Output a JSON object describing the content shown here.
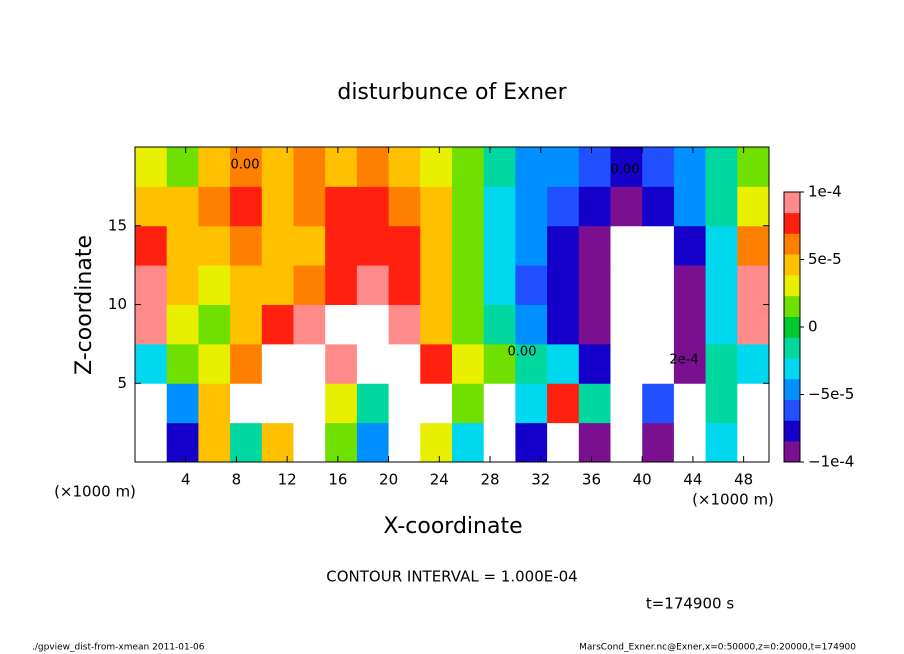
{
  "chart_data": {
    "type": "heatmap",
    "title": "disturbunce of Exner",
    "x_label": "X-coordinate",
    "y_label": "Z-coordinate",
    "x_unit": "(×1000 m)",
    "y_unit": "(×1000 m)",
    "xlim": [
      0,
      50
    ],
    "ylim": [
      0,
      20
    ],
    "xticks": [
      4,
      8,
      12,
      16,
      20,
      24,
      28,
      32,
      36,
      40,
      44,
      48
    ],
    "yticks": [
      5,
      10,
      15
    ],
    "x": [
      1.25,
      3.75,
      6.25,
      8.75,
      11.25,
      13.75,
      16.25,
      18.75,
      21.25,
      23.75,
      26.25,
      28.75,
      31.25,
      33.75,
      36.25,
      38.75,
      41.25,
      43.75,
      46.25,
      48.75
    ],
    "y": [
      1.25,
      3.75,
      6.25,
      8.75,
      11.25,
      13.75,
      16.25,
      18.75
    ],
    "values": [
      [
        -0.00014,
        -8e-05,
        5e-05,
        -2e-05,
        4e-05,
        0.00014,
        1e-05,
        -4e-05,
        0.00016,
        3e-05,
        -3e-05,
        0.00013,
        -8e-05,
        0.00012,
        -9e-05,
        0.00013,
        -0.0001,
        0.00014,
        -3e-05,
        -0.00014
      ],
      [
        -0.00012,
        -5e-05,
        4e-05,
        0.00012,
        0.00013,
        0.00014,
        3e-05,
        -2e-05,
        0.00015,
        0.00013,
        2e-05,
        0.00012,
        -3e-05,
        8e-05,
        -2e-05,
        0.00012,
        -6e-05,
        0.00014,
        -2e-05,
        -0.00012
      ],
      [
        -3e-05,
        1e-05,
        3e-05,
        6e-05,
        0.00011,
        0.00012,
        9e-05,
        0.00011,
        0.00012,
        7e-05,
        3e-05,
        1e-05,
        -1e-05,
        -3e-05,
        -8e-05,
        -0.00014,
        -0.00016,
        -9e-05,
        -2e-05,
        -3e-05
      ],
      [
        0.0001,
        3e-05,
        2e-05,
        4e-05,
        7e-05,
        9e-05,
        0.00011,
        0.00012,
        9e-05,
        5e-05,
        1e-05,
        -2e-05,
        -5e-05,
        -7e-05,
        -0.0001,
        -0.00013,
        -0.00014,
        -0.0001,
        -3e-05,
        0.0001
      ],
      [
        9e-05,
        4e-05,
        3e-05,
        5e-05,
        4e-05,
        6e-05,
        8e-05,
        9e-05,
        8e-05,
        5e-05,
        2e-05,
        -3e-05,
        -6e-05,
        -8e-05,
        -0.0001,
        -0.00013,
        -0.00013,
        -9e-05,
        -3e-05,
        9e-05
      ],
      [
        7e-05,
        5e-05,
        5e-05,
        6e-05,
        5e-05,
        5e-05,
        7e-05,
        8e-05,
        7e-05,
        5e-05,
        2e-05,
        -3e-05,
        -5e-05,
        -7e-05,
        -9e-05,
        -0.00012,
        -0.00011,
        -7e-05,
        -3e-05,
        6e-05
      ],
      [
        4e-05,
        5e-05,
        6e-05,
        7e-05,
        5e-05,
        6e-05,
        7e-05,
        7e-05,
        6e-05,
        4e-05,
        2e-05,
        -3e-05,
        -5e-05,
        -6e-05,
        -8e-05,
        -9e-05,
        -8e-05,
        -5e-05,
        -2e-05,
        3e-05
      ],
      [
        3e-05,
        2e-05,
        5e-05,
        6e-05,
        5e-05,
        6e-05,
        5e-05,
        6e-05,
        4e-05,
        3e-05,
        1e-05,
        -2e-05,
        -4e-05,
        -5e-05,
        -6e-05,
        -7e-05,
        -6e-05,
        -5e-05,
        -2e-05,
        1e-05
      ]
    ],
    "clim": [
      -0.0001,
      0.0001
    ],
    "cticks": [
      {
        "value": -0.0001,
        "label": "−1e-4"
      },
      {
        "value": -5e-05,
        "label": "−5e-5"
      },
      0,
      {
        "value": 5e-05,
        "label": "5e-5"
      },
      {
        "value": 0.0001,
        "label": "1e-4"
      }
    ],
    "colorscale": [
      "#7a1090",
      "#1400c8",
      "#2050ff",
      "#0090ff",
      "#00d8f0",
      "#00d8a0",
      "#00c830",
      "#70e000",
      "#e8f000",
      "#ffc000",
      "#ff8000",
      "#ff2010",
      "#ff8a8a"
    ],
    "out_of_range_color": "#ffffff",
    "annotations": [
      "0.00",
      "0.00",
      "0.00",
      "2e-4"
    ],
    "contour_interval": "CONTOUR INTERVAL = 1.000E-04",
    "time_label": "t=174900 s",
    "footer_left": "./gpview_dist-from-xmean  2011-01-06",
    "footer_right": "MarsCond_Exner.nc@Exner,x=0:50000,z=0:20000,t=174900"
  }
}
